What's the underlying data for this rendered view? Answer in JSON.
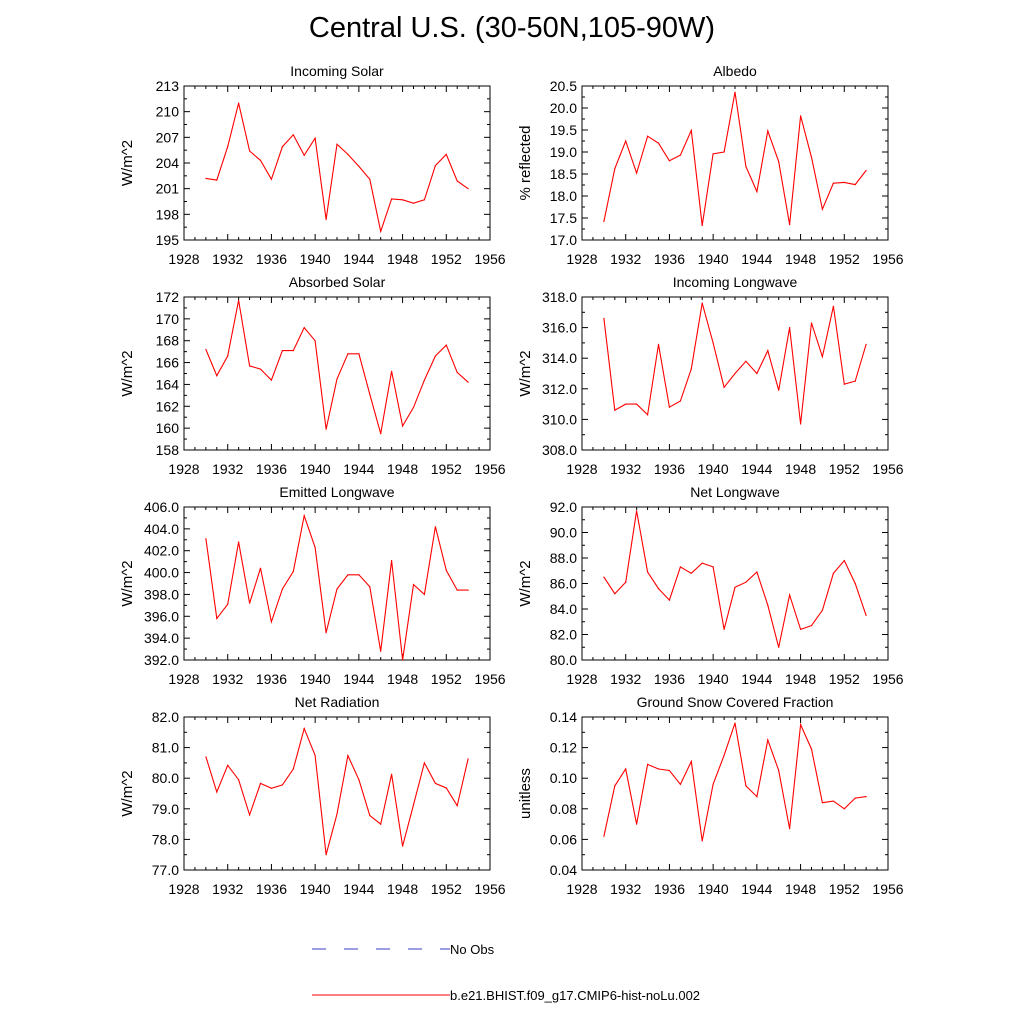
{
  "figure": {
    "title": "Central U.S. (30-50N,105-90W)",
    "colors": {
      "model": "#ff0000",
      "obs": "#3c3cc8",
      "axis": "#000000"
    }
  },
  "legend": {
    "obs_label": "No Obs",
    "model_label": "b.e21.BHIST.f09_g17.CMIP6-hist-noLu.002"
  },
  "chart_data": [
    {
      "type": "line",
      "title": "Incoming Solar",
      "ylabel": "W/m^2",
      "ylim": [
        195,
        213
      ],
      "yticks": [
        "195",
        "198",
        "201",
        "204",
        "207",
        "210",
        "213"
      ],
      "xlim": [
        1928,
        1956
      ],
      "xticks": [
        "1928",
        "1932",
        "1936",
        "1940",
        "1944",
        "1948",
        "1952",
        "1956"
      ],
      "x": [
        1930,
        1931,
        1932,
        1933,
        1934,
        1935,
        1936,
        1937,
        1938,
        1939,
        1940,
        1941,
        1942,
        1943,
        1944,
        1945,
        1946,
        1947,
        1948,
        1949,
        1950,
        1951,
        1952,
        1953,
        1954
      ],
      "series": [
        {
          "values": [
            202.2,
            202.0,
            205.9,
            211.0,
            205.4,
            204.3,
            202.1,
            205.9,
            207.3,
            204.9,
            206.9,
            197.4,
            206.2,
            205.0,
            203.6,
            202.1,
            196.0,
            199.8,
            199.7,
            199.3,
            199.7,
            203.7,
            205.0,
            201.9,
            201.0
          ]
        }
      ]
    },
    {
      "type": "line",
      "title": "Albedo",
      "ylabel": "% reflected",
      "ylim": [
        17.0,
        20.5
      ],
      "yticks": [
        "17.0",
        "17.5",
        "18.0",
        "18.5",
        "19.0",
        "19.5",
        "20.0",
        "20.5"
      ],
      "xlim": [
        1928,
        1956
      ],
      "xticks": [
        "1928",
        "1932",
        "1936",
        "1940",
        "1944",
        "1948",
        "1952",
        "1956"
      ],
      "x": [
        1930,
        1931,
        1932,
        1933,
        1934,
        1935,
        1936,
        1937,
        1938,
        1939,
        1940,
        1941,
        1942,
        1943,
        1944,
        1945,
        1946,
        1947,
        1948,
        1949,
        1950,
        1951,
        1952,
        1953,
        1954
      ],
      "series": [
        {
          "values": [
            17.42,
            18.62,
            19.25,
            18.52,
            19.36,
            19.2,
            18.8,
            18.93,
            19.49,
            17.33,
            18.96,
            19.0,
            20.36,
            18.67,
            18.1,
            19.48,
            18.78,
            17.35,
            19.82,
            18.88,
            17.7,
            18.29,
            18.31,
            18.26,
            18.58
          ]
        }
      ]
    },
    {
      "type": "line",
      "title": "Absorbed Solar",
      "ylabel": "W/m^2",
      "ylim": [
        158,
        172
      ],
      "yticks": [
        "158",
        "160",
        "162",
        "164",
        "166",
        "168",
        "170",
        "172"
      ],
      "xlim": [
        1928,
        1956
      ],
      "xticks": [
        "1928",
        "1932",
        "1936",
        "1940",
        "1944",
        "1948",
        "1952",
        "1956"
      ],
      "x": [
        1930,
        1931,
        1932,
        1933,
        1934,
        1935,
        1936,
        1937,
        1938,
        1939,
        1940,
        1941,
        1942,
        1943,
        1944,
        1945,
        1946,
        1947,
        1948,
        1949,
        1950,
        1951,
        1952,
        1953,
        1954
      ],
      "series": [
        {
          "values": [
            167.2,
            164.8,
            166.6,
            171.7,
            165.7,
            165.4,
            164.4,
            167.1,
            167.1,
            169.2,
            168.0,
            159.9,
            164.5,
            166.8,
            166.8,
            163.1,
            159.5,
            165.2,
            160.2,
            161.9,
            164.4,
            166.6,
            167.6,
            165.1,
            164.2
          ]
        }
      ]
    },
    {
      "type": "line",
      "title": "Incoming Longwave",
      "ylabel": "W/m^2",
      "ylim": [
        308.0,
        318.0
      ],
      "yticks": [
        "308.0",
        "310.0",
        "312.0",
        "314.0",
        "316.0",
        "318.0"
      ],
      "xlim": [
        1928,
        1956
      ],
      "xticks": [
        "1928",
        "1932",
        "1936",
        "1940",
        "1944",
        "1948",
        "1952",
        "1956"
      ],
      "x": [
        1930,
        1931,
        1932,
        1933,
        1934,
        1935,
        1936,
        1937,
        1938,
        1939,
        1940,
        1941,
        1942,
        1943,
        1944,
        1945,
        1946,
        1947,
        1948,
        1949,
        1950,
        1951,
        1952,
        1953,
        1954
      ],
      "series": [
        {
          "values": [
            316.6,
            310.6,
            311.0,
            311.0,
            310.3,
            314.9,
            310.8,
            311.2,
            313.3,
            317.6,
            315.0,
            312.1,
            313.0,
            313.8,
            313.0,
            314.5,
            311.9,
            316.0,
            309.7,
            316.3,
            314.1,
            317.4,
            312.3,
            312.5,
            314.9
          ]
        }
      ]
    },
    {
      "type": "line",
      "title": "Emitted Longwave",
      "ylabel": "W/m^2",
      "ylim": [
        392.0,
        406.0
      ],
      "yticks": [
        "392.0",
        "394.0",
        "396.0",
        "398.0",
        "400.0",
        "402.0",
        "404.0",
        "406.0"
      ],
      "xlim": [
        1928,
        1956
      ],
      "xticks": [
        "1928",
        "1932",
        "1936",
        "1940",
        "1944",
        "1948",
        "1952",
        "1956"
      ],
      "x": [
        1930,
        1931,
        1932,
        1933,
        1934,
        1935,
        1936,
        1937,
        1938,
        1939,
        1940,
        1941,
        1942,
        1943,
        1944,
        1945,
        1946,
        1947,
        1948,
        1949,
        1950,
        1951,
        1952,
        1953,
        1954
      ],
      "series": [
        {
          "values": [
            403.1,
            395.8,
            397.1,
            402.8,
            397.2,
            400.4,
            395.5,
            398.5,
            400.1,
            405.2,
            402.3,
            394.5,
            398.5,
            399.8,
            399.8,
            398.7,
            392.8,
            401.1,
            392.0,
            398.9,
            398.0,
            404.2,
            400.2,
            398.4,
            398.4
          ]
        }
      ]
    },
    {
      "type": "line",
      "title": "Net Longwave",
      "ylabel": "W/m^2",
      "ylim": [
        80.0,
        92.0
      ],
      "yticks": [
        "80.0",
        "82.0",
        "84.0",
        "86.0",
        "88.0",
        "90.0",
        "92.0"
      ],
      "xlim": [
        1928,
        1956
      ],
      "xticks": [
        "1928",
        "1932",
        "1936",
        "1940",
        "1944",
        "1948",
        "1952",
        "1956"
      ],
      "x": [
        1930,
        1931,
        1932,
        1933,
        1934,
        1935,
        1936,
        1937,
        1938,
        1939,
        1940,
        1941,
        1942,
        1943,
        1944,
        1945,
        1946,
        1947,
        1948,
        1949,
        1950,
        1951,
        1952,
        1953,
        1954
      ],
      "series": [
        {
          "values": [
            86.5,
            85.2,
            86.1,
            91.7,
            86.9,
            85.6,
            84.7,
            87.3,
            86.8,
            87.6,
            87.3,
            82.4,
            85.7,
            86.1,
            86.9,
            84.3,
            81.0,
            85.1,
            82.4,
            82.7,
            83.9,
            86.8,
            87.8,
            86.0,
            83.5
          ]
        }
      ]
    },
    {
      "type": "line",
      "title": "Net Radiation",
      "ylabel": "W/m^2",
      "ylim": [
        77.0,
        82.0
      ],
      "yticks": [
        "77.0",
        "78.0",
        "79.0",
        "80.0",
        "81.0",
        "82.0"
      ],
      "xlim": [
        1928,
        1956
      ],
      "xticks": [
        "1928",
        "1932",
        "1936",
        "1940",
        "1944",
        "1948",
        "1952",
        "1956"
      ],
      "x": [
        1930,
        1931,
        1932,
        1933,
        1934,
        1935,
        1936,
        1937,
        1938,
        1939,
        1940,
        1941,
        1942,
        1943,
        1944,
        1945,
        1946,
        1947,
        1948,
        1949,
        1950,
        1951,
        1952,
        1953,
        1954
      ],
      "series": [
        {
          "values": [
            80.7,
            79.55,
            80.42,
            79.95,
            78.8,
            79.83,
            79.67,
            79.78,
            80.3,
            81.62,
            80.75,
            77.5,
            78.83,
            80.74,
            79.95,
            78.78,
            78.5,
            80.13,
            77.78,
            79.13,
            80.5,
            79.83,
            79.68,
            79.1,
            80.63
          ]
        }
      ]
    },
    {
      "type": "line",
      "title": "Ground Snow Covered Fraction",
      "ylabel": "unitless",
      "ylim": [
        0.04,
        0.14
      ],
      "yticks": [
        "0.04",
        "0.06",
        "0.08",
        "0.10",
        "0.12",
        "0.14"
      ],
      "xlim": [
        1928,
        1956
      ],
      "xticks": [
        "1928",
        "1932",
        "1936",
        "1940",
        "1944",
        "1948",
        "1952",
        "1956"
      ],
      "x": [
        1930,
        1931,
        1932,
        1933,
        1934,
        1935,
        1936,
        1937,
        1938,
        1939,
        1940,
        1941,
        1942,
        1943,
        1944,
        1945,
        1946,
        1947,
        1948,
        1949,
        1950,
        1951,
        1952,
        1953,
        1954
      ],
      "series": [
        {
          "values": [
            0.062,
            0.095,
            0.106,
            0.07,
            0.109,
            0.106,
            0.105,
            0.096,
            0.111,
            0.059,
            0.096,
            0.115,
            0.136,
            0.095,
            0.088,
            0.125,
            0.105,
            0.067,
            0.135,
            0.119,
            0.084,
            0.085,
            0.08,
            0.087,
            0.088
          ]
        }
      ]
    }
  ]
}
